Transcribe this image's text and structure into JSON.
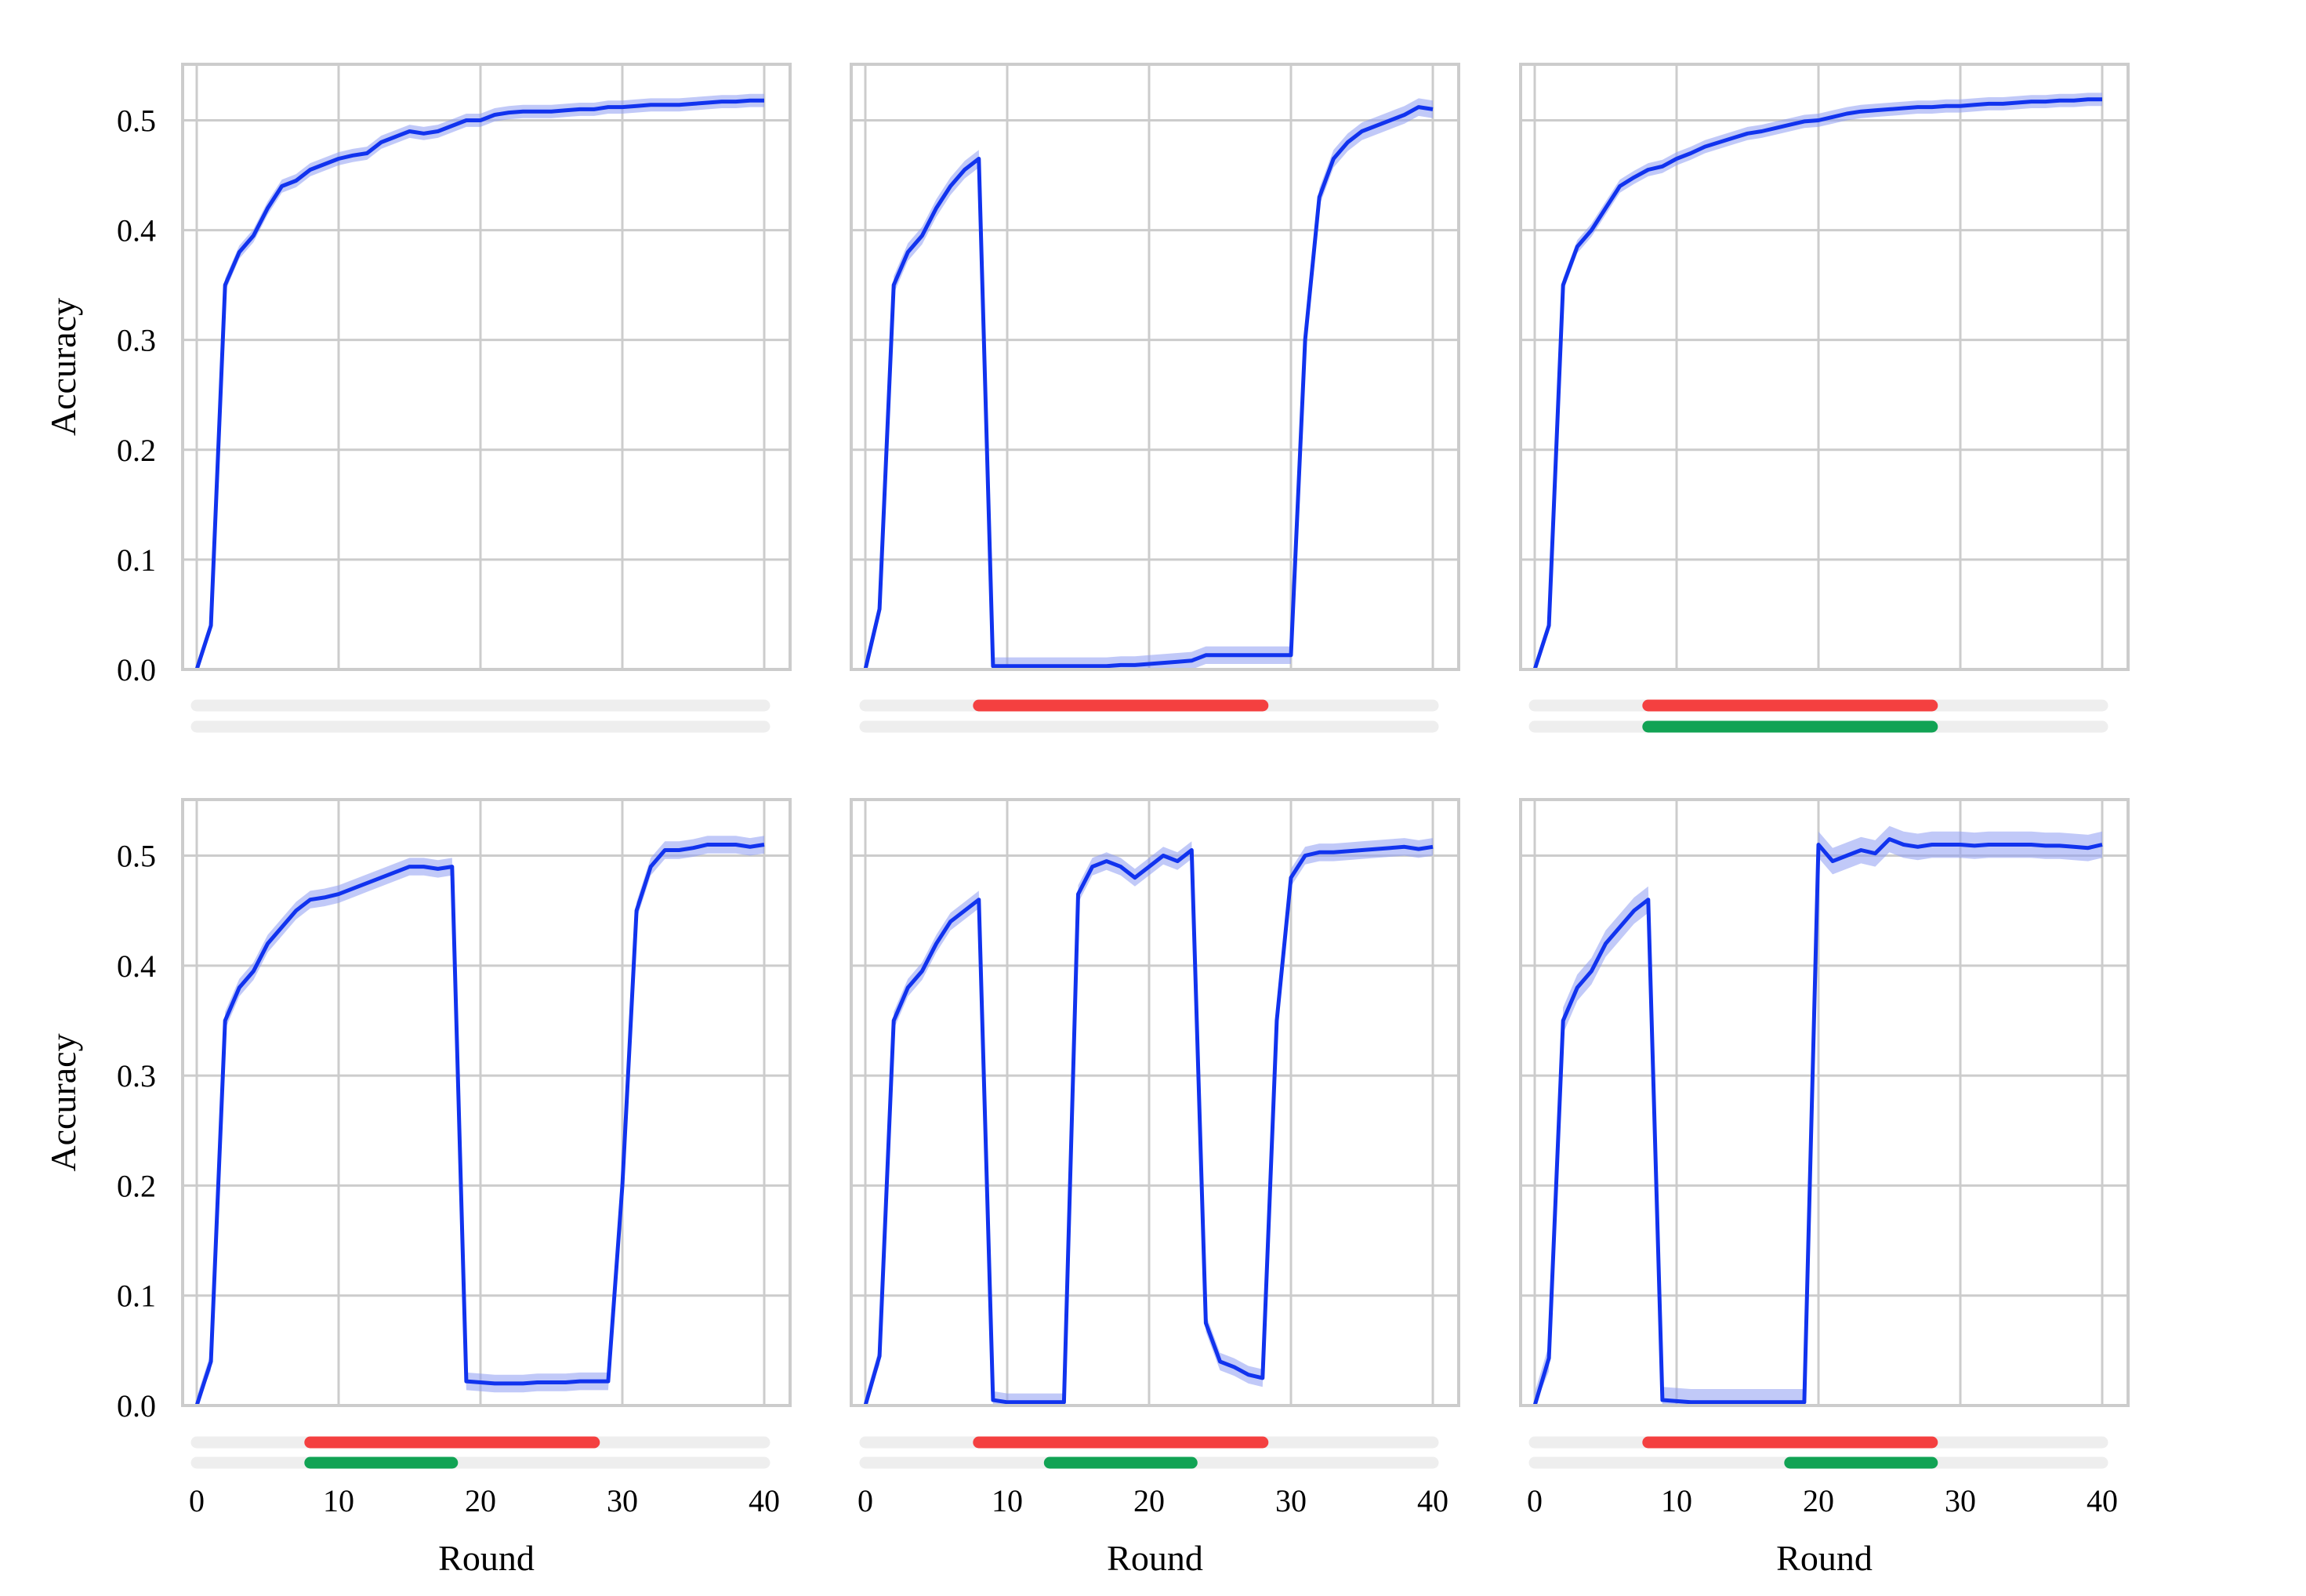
{
  "figure": {
    "y_axis_label": "Accuracy",
    "x_axis_label": "Round"
  },
  "colors": {
    "line": "#1133ee",
    "band": "#8e9df2",
    "grid": "#cccccc",
    "frame": "#cccccc",
    "track": "#eeeeee",
    "bar_red": "#f44040",
    "bar_green": "#11a354"
  },
  "chart_data": [
    {
      "type": "line",
      "panel": "top-left",
      "xlim": [
        0,
        40
      ],
      "ylim": [
        0,
        0.55
      ],
      "grid": true,
      "xticks": [
        "0",
        "10",
        "20",
        "30",
        "40"
      ],
      "yticks": [
        "0.0",
        "0.1",
        "0.2",
        "0.3",
        "0.4",
        "0.5"
      ],
      "xlabel": "",
      "ylabel": "Accuracy",
      "series": [
        {
          "x": [
            0,
            1,
            2,
            3,
            4,
            5,
            6,
            7,
            8,
            9,
            10,
            11,
            12,
            13,
            14,
            15,
            16,
            17,
            18,
            19,
            20,
            21,
            22,
            23,
            24,
            25,
            26,
            27,
            28,
            29,
            30,
            31,
            32,
            33,
            34,
            35,
            36,
            37,
            38,
            39,
            40
          ],
          "y": [
            0.0,
            0.04,
            0.35,
            0.38,
            0.395,
            0.42,
            0.44,
            0.445,
            0.455,
            0.46,
            0.465,
            0.468,
            0.47,
            0.48,
            0.485,
            0.49,
            0.488,
            0.49,
            0.495,
            0.5,
            0.5,
            0.505,
            0.507,
            0.508,
            0.508,
            0.508,
            0.509,
            0.51,
            0.51,
            0.512,
            0.512,
            0.513,
            0.514,
            0.514,
            0.514,
            0.515,
            0.516,
            0.517,
            0.517,
            0.518,
            0.518
          ],
          "band": 0.006
        }
      ],
      "bars": {
        "red": null,
        "green": null
      }
    },
    {
      "type": "line",
      "panel": "top-middle",
      "xlim": [
        0,
        40
      ],
      "ylim": [
        0,
        0.55
      ],
      "grid": true,
      "xticks": [
        "0",
        "10",
        "20",
        "30",
        "40"
      ],
      "yticks": [
        "0.0",
        "0.1",
        "0.2",
        "0.3",
        "0.4",
        "0.5"
      ],
      "xlabel": "",
      "ylabel": "",
      "series": [
        {
          "x": [
            0,
            1,
            2,
            3,
            4,
            5,
            6,
            7,
            8,
            9,
            10,
            11,
            12,
            13,
            14,
            15,
            16,
            17,
            18,
            19,
            20,
            21,
            22,
            23,
            24,
            25,
            26,
            27,
            28,
            29,
            30,
            31,
            32,
            33,
            34,
            35,
            36,
            37,
            38,
            39,
            40
          ],
          "y": [
            0.0,
            0.055,
            0.35,
            0.38,
            0.395,
            0.42,
            0.44,
            0.455,
            0.465,
            0.003,
            0.003,
            0.003,
            0.003,
            0.003,
            0.003,
            0.003,
            0.003,
            0.003,
            0.004,
            0.004,
            0.005,
            0.006,
            0.007,
            0.008,
            0.013,
            0.013,
            0.013,
            0.013,
            0.013,
            0.013,
            0.013,
            0.3,
            0.43,
            0.465,
            0.48,
            0.49,
            0.495,
            0.5,
            0.505,
            0.512,
            0.51
          ],
          "band": 0.008
        }
      ],
      "bars": {
        "red": [
          8,
          28
        ],
        "green": null
      }
    },
    {
      "type": "line",
      "panel": "top-right",
      "xlim": [
        0,
        40
      ],
      "ylim": [
        0,
        0.55
      ],
      "grid": true,
      "xticks": [
        "0",
        "10",
        "20",
        "30",
        "40"
      ],
      "yticks": [
        "0.0",
        "0.1",
        "0.2",
        "0.3",
        "0.4",
        "0.5"
      ],
      "xlabel": "",
      "ylabel": "",
      "series": [
        {
          "x": [
            0,
            1,
            2,
            3,
            4,
            5,
            6,
            7,
            8,
            9,
            10,
            11,
            12,
            13,
            14,
            15,
            16,
            17,
            18,
            19,
            20,
            21,
            22,
            23,
            24,
            25,
            26,
            27,
            28,
            29,
            30,
            31,
            32,
            33,
            34,
            35,
            36,
            37,
            38,
            39,
            40
          ],
          "y": [
            0.0,
            0.04,
            0.35,
            0.385,
            0.4,
            0.42,
            0.44,
            0.448,
            0.455,
            0.458,
            0.465,
            0.47,
            0.476,
            0.48,
            0.484,
            0.488,
            0.49,
            0.493,
            0.496,
            0.499,
            0.5,
            0.503,
            0.506,
            0.508,
            0.509,
            0.51,
            0.511,
            0.512,
            0.512,
            0.513,
            0.513,
            0.514,
            0.515,
            0.515,
            0.516,
            0.517,
            0.517,
            0.518,
            0.518,
            0.519,
            0.519
          ],
          "band": 0.006
        }
      ],
      "bars": {
        "red": [
          8,
          28
        ],
        "green": [
          8,
          28
        ]
      }
    },
    {
      "type": "line",
      "panel": "bottom-left",
      "xlim": [
        0,
        40
      ],
      "ylim": [
        0,
        0.55
      ],
      "grid": true,
      "xticks": [
        "0",
        "10",
        "20",
        "30",
        "40"
      ],
      "yticks": [
        "0.0",
        "0.1",
        "0.2",
        "0.3",
        "0.4",
        "0.5"
      ],
      "xlabel": "Round",
      "ylabel": "Accuracy",
      "series": [
        {
          "x": [
            0,
            1,
            2,
            3,
            4,
            5,
            6,
            7,
            8,
            9,
            10,
            11,
            12,
            13,
            14,
            15,
            16,
            17,
            18,
            19,
            20,
            21,
            22,
            23,
            24,
            25,
            26,
            27,
            28,
            29,
            30,
            31,
            32,
            33,
            34,
            35,
            36,
            37,
            38,
            39,
            40
          ],
          "y": [
            0.0,
            0.04,
            0.35,
            0.38,
            0.395,
            0.42,
            0.435,
            0.45,
            0.46,
            0.462,
            0.465,
            0.47,
            0.475,
            0.48,
            0.485,
            0.49,
            0.49,
            0.488,
            0.49,
            0.022,
            0.021,
            0.02,
            0.02,
            0.02,
            0.021,
            0.021,
            0.021,
            0.022,
            0.022,
            0.022,
            0.2,
            0.45,
            0.49,
            0.505,
            0.505,
            0.507,
            0.51,
            0.51,
            0.51,
            0.508,
            0.51
          ],
          "band": 0.008
        }
      ],
      "bars": {
        "red": [
          8,
          28
        ],
        "green": [
          8,
          18
        ]
      }
    },
    {
      "type": "line",
      "panel": "bottom-middle",
      "xlim": [
        0,
        40
      ],
      "ylim": [
        0,
        0.55
      ],
      "grid": true,
      "xticks": [
        "0",
        "10",
        "20",
        "30",
        "40"
      ],
      "yticks": [
        "0.0",
        "0.1",
        "0.2",
        "0.3",
        "0.4",
        "0.5"
      ],
      "xlabel": "Round",
      "ylabel": "",
      "series": [
        {
          "x": [
            0,
            1,
            2,
            3,
            4,
            5,
            6,
            7,
            8,
            9,
            10,
            11,
            12,
            13,
            14,
            15,
            16,
            17,
            18,
            19,
            20,
            21,
            22,
            23,
            24,
            25,
            26,
            27,
            28,
            29,
            30,
            31,
            32,
            33,
            34,
            35,
            36,
            37,
            38,
            39,
            40
          ],
          "y": [
            0.0,
            0.045,
            0.35,
            0.38,
            0.395,
            0.42,
            0.44,
            0.45,
            0.46,
            0.005,
            0.003,
            0.003,
            0.003,
            0.003,
            0.003,
            0.465,
            0.49,
            0.495,
            0.49,
            0.48,
            0.49,
            0.5,
            0.495,
            0.505,
            0.075,
            0.04,
            0.035,
            0.028,
            0.025,
            0.35,
            0.48,
            0.5,
            0.503,
            0.503,
            0.504,
            0.505,
            0.506,
            0.507,
            0.508,
            0.506,
            0.508
          ],
          "band": 0.008
        }
      ],
      "bars": {
        "red": [
          8,
          28
        ],
        "green": [
          13,
          23
        ]
      }
    },
    {
      "type": "line",
      "panel": "bottom-right",
      "xlim": [
        0,
        40
      ],
      "ylim": [
        0,
        0.55
      ],
      "grid": true,
      "xticks": [
        "0",
        "10",
        "20",
        "30",
        "40"
      ],
      "yticks": [
        "0.0",
        "0.1",
        "0.2",
        "0.3",
        "0.4",
        "0.5"
      ],
      "xlabel": "Round",
      "ylabel": "",
      "series": [
        {
          "x": [
            0,
            1,
            2,
            3,
            4,
            5,
            6,
            7,
            8,
            9,
            10,
            11,
            12,
            13,
            14,
            15,
            16,
            17,
            18,
            19,
            20,
            21,
            22,
            23,
            24,
            25,
            26,
            27,
            28,
            29,
            30,
            31,
            32,
            33,
            34,
            35,
            36,
            37,
            38,
            39,
            40
          ],
          "y": [
            0.0,
            0.043,
            0.35,
            0.38,
            0.395,
            0.42,
            0.435,
            0.45,
            0.46,
            0.005,
            0.004,
            0.003,
            0.003,
            0.003,
            0.003,
            0.003,
            0.003,
            0.003,
            0.003,
            0.003,
            0.51,
            0.495,
            0.5,
            0.505,
            0.502,
            0.515,
            0.51,
            0.508,
            0.51,
            0.51,
            0.51,
            0.509,
            0.51,
            0.51,
            0.51,
            0.51,
            0.509,
            0.509,
            0.508,
            0.507,
            0.51
          ],
          "band": 0.012
        }
      ],
      "bars": {
        "red": [
          8,
          28
        ],
        "green": [
          18,
          28
        ]
      }
    }
  ]
}
